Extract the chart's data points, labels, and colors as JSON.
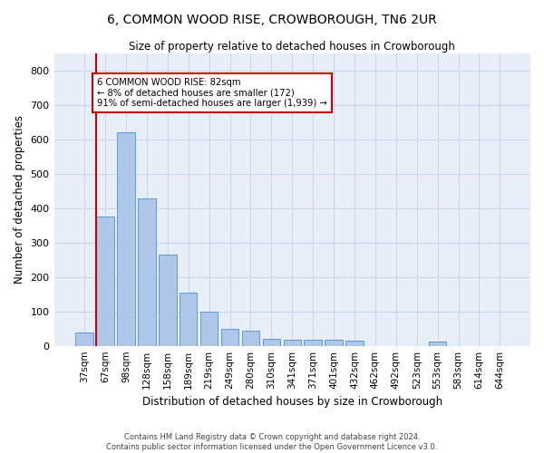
{
  "title": "6, COMMON WOOD RISE, CROWBOROUGH, TN6 2UR",
  "subtitle": "Size of property relative to detached houses in Crowborough",
  "xlabel": "Distribution of detached houses by size in Crowborough",
  "ylabel": "Number of detached properties",
  "categories": [
    "37sqm",
    "67sqm",
    "98sqm",
    "128sqm",
    "158sqm",
    "189sqm",
    "219sqm",
    "249sqm",
    "280sqm",
    "310sqm",
    "341sqm",
    "371sqm",
    "401sqm",
    "432sqm",
    "462sqm",
    "492sqm",
    "523sqm",
    "553sqm",
    "583sqm",
    "614sqm",
    "644sqm"
  ],
  "bar_heights": [
    40,
    375,
    620,
    430,
    265,
    155,
    100,
    50,
    45,
    20,
    18,
    18,
    18,
    15,
    0,
    0,
    0,
    12,
    0,
    0,
    0
  ],
  "bar_color": "#aec6e8",
  "bar_edge_color": "#5b9bd5",
  "grid_color": "#c8d4e8",
  "background_color": "#e8eef8",
  "annotation_text": "6 COMMON WOOD RISE: 82sqm\n← 8% of detached houses are smaller (172)\n91% of semi-detached houses are larger (1,939) →",
  "annotation_box_color": "#ffffff",
  "annotation_box_edge": "#cc0000",
  "red_line_color": "#cc0000",
  "footer_text": "Contains HM Land Registry data © Crown copyright and database right 2024.\nContains public sector information licensed under the Open Government Licence v3.0.",
  "ylim": [
    0,
    850
  ],
  "yticks": [
    0,
    100,
    200,
    300,
    400,
    500,
    600,
    700,
    800
  ]
}
